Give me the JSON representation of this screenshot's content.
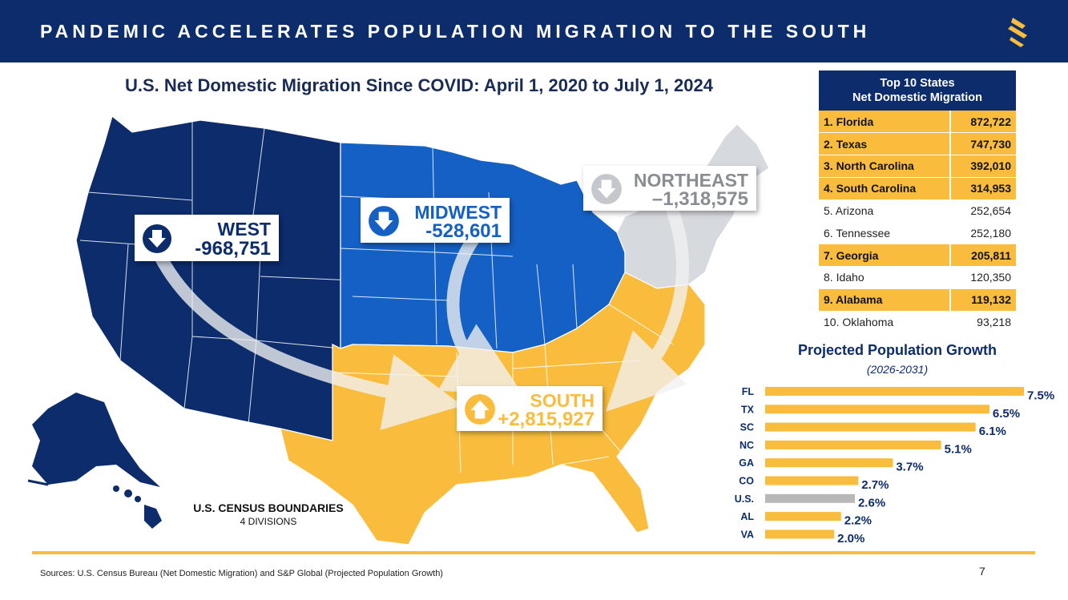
{
  "header": {
    "title": "PANDEMIC ACCELERATES POPULATION MIGRATION TO THE SOUTH",
    "logo_icon": "s-logo-icon",
    "background": "#0c2c6c",
    "logo_color": "#f9bc3d"
  },
  "map": {
    "title": "U.S. Net Domestic Migration Since COVID: April 1, 2020 to July 1, 2024",
    "colors": {
      "west": "#0c2c6c",
      "midwest": "#1560c4",
      "northeast": "#d6d9de",
      "south": "#f9bc3d"
    },
    "regions": {
      "west": {
        "name": "WEST",
        "value": "-968,751",
        "icon": "arrow-down-icon"
      },
      "midwest": {
        "name": "MIDWEST",
        "value": "-528,601",
        "icon": "arrow-down-icon"
      },
      "northeast": {
        "name": "NORTHEAST",
        "value": "–1,318,575",
        "icon": "arrow-down-icon"
      },
      "south": {
        "name": "SOUTH",
        "value": "+2,815,927",
        "icon": "arrow-up-icon"
      }
    },
    "census_label": {
      "line1": "U.S. CENSUS BOUNDARIES",
      "line2": "4 DIVISIONS"
    }
  },
  "top_states": {
    "title_line1": "Top 10 States",
    "title_line2": "Net Domestic Migration",
    "rows": [
      {
        "label": "1. Florida",
        "value": "872,722",
        "highlight": true
      },
      {
        "label": "2. Texas",
        "value": "747,730",
        "highlight": true
      },
      {
        "label": "3. North Carolina",
        "value": "392,010",
        "highlight": true
      },
      {
        "label": "4. South Carolina",
        "value": "314,953",
        "highlight": true
      },
      {
        "label": "5. Arizona",
        "value": "252,654",
        "highlight": false
      },
      {
        "label": "6. Tennessee",
        "value": "252,180",
        "highlight": false
      },
      {
        "label": "7. Georgia",
        "value": "205,811",
        "highlight": true
      },
      {
        "label": "8. Idaho",
        "value": "120,350",
        "highlight": false
      },
      {
        "label": "9. Alabama",
        "value": "119,132",
        "highlight": true
      },
      {
        "label": "10. Oklahoma",
        "value": "93,218",
        "highlight": false
      }
    ]
  },
  "chart_data": {
    "type": "bar",
    "orientation": "horizontal",
    "title": "Projected Population Growth",
    "subtitle": "(2026-2031)",
    "categories": [
      "FL",
      "TX",
      "SC",
      "NC",
      "GA",
      "CO",
      "U.S.",
      "AL",
      "VA"
    ],
    "values": [
      7.5,
      6.5,
      6.1,
      5.1,
      3.7,
      2.7,
      2.6,
      2.2,
      2.0
    ],
    "value_labels": [
      "7.5%",
      "6.5%",
      "6.1%",
      "5.1%",
      "3.7%",
      "2.7%",
      "2.6%",
      "2.2%",
      "2.0%"
    ],
    "bar_colors": [
      "#f9bc3d",
      "#f9bc3d",
      "#f9bc3d",
      "#f9bc3d",
      "#f9bc3d",
      "#f9bc3d",
      "#b8b8b8",
      "#f9bc3d",
      "#f9bc3d"
    ],
    "xlim": [
      0,
      7.5
    ],
    "grid": false,
    "xlabel": "",
    "ylabel": ""
  },
  "footer": {
    "sources": "Sources: U.S. Census Bureau (Net Domestic Migration) and S&P Global (Projected Population Growth)",
    "page_number": "7"
  }
}
